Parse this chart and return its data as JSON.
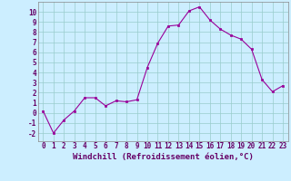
{
  "x": [
    0,
    1,
    2,
    3,
    4,
    5,
    6,
    7,
    8,
    9,
    10,
    11,
    12,
    13,
    14,
    15,
    16,
    17,
    18,
    19,
    20,
    21,
    22,
    23
  ],
  "y": [
    0.2,
    -2.0,
    -0.7,
    0.2,
    1.5,
    1.5,
    0.7,
    1.2,
    1.1,
    1.3,
    4.5,
    6.9,
    8.6,
    8.7,
    10.1,
    10.5,
    9.2,
    8.3,
    7.7,
    7.3,
    6.3,
    3.3,
    2.1,
    2.7
  ],
  "line_color": "#990099",
  "marker": "s",
  "marker_size": 2,
  "bg_color": "#cceeff",
  "grid_color": "#99cccc",
  "xlabel": "Windchill (Refroidissement éolien,°C)",
  "xlabel_color": "#660066",
  "xlabel_fontsize": 6.5,
  "tick_color": "#660066",
  "tick_fontsize": 5.5,
  "ylim": [
    -2.8,
    11.0
  ],
  "yticks": [
    -2,
    -1,
    0,
    1,
    2,
    3,
    4,
    5,
    6,
    7,
    8,
    9,
    10
  ],
  "xlim": [
    -0.5,
    23.5
  ],
  "xticks": [
    0,
    1,
    2,
    3,
    4,
    5,
    6,
    7,
    8,
    9,
    10,
    11,
    12,
    13,
    14,
    15,
    16,
    17,
    18,
    19,
    20,
    21,
    22,
    23
  ]
}
